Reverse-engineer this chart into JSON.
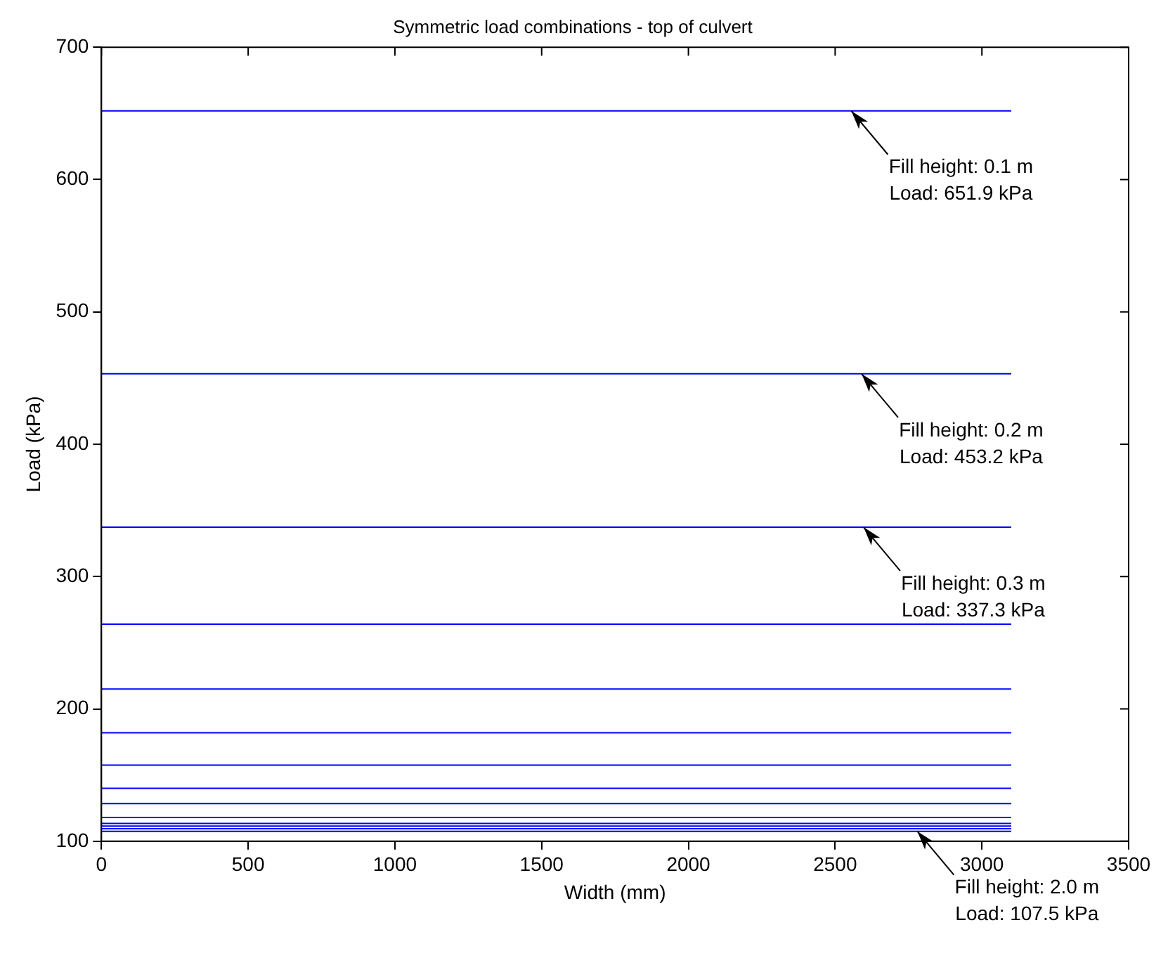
{
  "chart_data": {
    "type": "line",
    "title": "Symmetric load combinations - top of culvert",
    "xlabel": "Width (mm)",
    "ylabel": "Load (kPa)",
    "x": [
      0,
      3100
    ],
    "series": [
      {
        "color": "#0000ff",
        "values": [
          651.9,
          651.9
        ]
      },
      {
        "color": "#0000ff",
        "values": [
          453.2,
          453.2
        ]
      },
      {
        "color": "#0000ff",
        "values": [
          337.3,
          337.3
        ]
      },
      {
        "color": "#0000ff",
        "values": [
          264,
          264
        ]
      },
      {
        "color": "#0000ff",
        "values": [
          215,
          215
        ]
      },
      {
        "color": "#0000ff",
        "values": [
          182,
          182
        ]
      },
      {
        "color": "#0000ff",
        "values": [
          157.5,
          157.5
        ]
      },
      {
        "color": "#0000ff",
        "values": [
          140,
          140
        ]
      },
      {
        "color": "#0000ff",
        "values": [
          128.5,
          128.5
        ]
      },
      {
        "color": "#0000ff",
        "values": [
          118,
          118
        ]
      },
      {
        "color": "#0000ff",
        "values": [
          113.5,
          113.5
        ]
      },
      {
        "color": "#0000ff",
        "values": [
          111.5,
          111.5
        ]
      },
      {
        "color": "#0000ff",
        "values": [
          109.5,
          109.5
        ]
      },
      {
        "color": "#0000ff",
        "values": [
          107.5,
          107.5
        ]
      }
    ],
    "xlim": [
      0,
      3500
    ],
    "xticks": [
      0,
      500,
      1000,
      1500,
      2000,
      2500,
      3000,
      3500
    ],
    "ylim": [
      100,
      700
    ],
    "yticks": [
      100,
      200,
      300,
      400,
      500,
      600,
      700
    ],
    "grid": false,
    "legend": false,
    "marker": "none",
    "line_style": "solid",
    "annotations": [
      {
        "text": "Fill height: 0.1 m\nLoad: 651.9 kPa",
        "x": 2555,
        "y": 651.9
      },
      {
        "text": "Fill height: 0.2 m\nLoad: 453.2 kPa",
        "x": 2590,
        "y": 453.2
      },
      {
        "text": "Fill height: 0.3 m\nLoad: 337.3 kPa",
        "x": 2597,
        "y": 337.3
      },
      {
        "text": "Fill height: 2.0 m\nLoad: 107.5 kPa",
        "x": 2780,
        "y": 107.5
      }
    ]
  }
}
